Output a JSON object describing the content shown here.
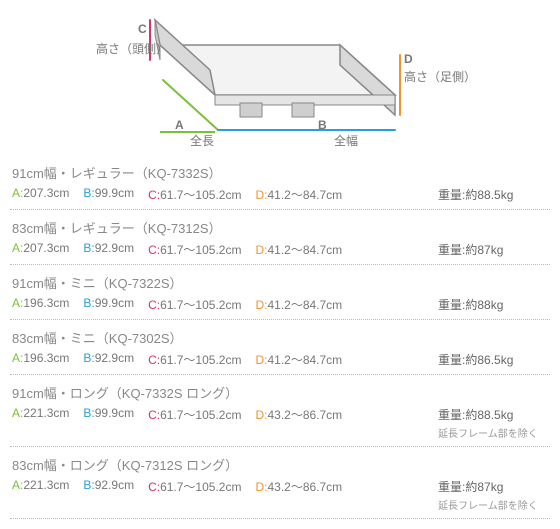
{
  "diagram": {
    "labels": {
      "A_letter": "A",
      "A_text": "全長",
      "B_letter": "B",
      "B_text": "全幅",
      "C_letter": "C",
      "C_text": "高さ（頭側）",
      "D_letter": "D",
      "D_text": "高さ（足側）"
    },
    "colors": {
      "A": "#7bbf3a",
      "B": "#2a9ed6",
      "C": "#d6336c",
      "D": "#f0932b",
      "bed_outline": "#888888",
      "bed_fill": "#f3f3f3",
      "bed_panel_fill": "#d9d9d9"
    }
  },
  "common_labels": {
    "A": "A:",
    "B": "B:",
    "C": "C:",
    "D": "D:",
    "weight_label": "重量:",
    "note_excl_ext": "延長フレーム部を除く"
  },
  "models": [
    {
      "title": "91cm幅・レギュラー（KQ-7332S）",
      "A": "207.3cm",
      "B": "99.9cm",
      "C": "61.7〜105.2cm",
      "D": "41.2〜84.7cm",
      "weight": "約88.5kg",
      "note": ""
    },
    {
      "title": "83cm幅・レギュラー（KQ-7312S）",
      "A": "207.3cm",
      "B": "92.9cm",
      "C": "61.7〜105.2cm",
      "D": "41.2〜84.7cm",
      "weight": "約87kg",
      "note": ""
    },
    {
      "title": "91cm幅・ミニ（KQ-7322S）",
      "A": "196.3cm",
      "B": "99.9cm",
      "C": "61.7〜105.2cm",
      "D": "41.2〜84.7cm",
      "weight": "約88kg",
      "note": ""
    },
    {
      "title": "83cm幅・ミニ（KQ-7302S）",
      "A": "196.3cm",
      "B": "92.9cm",
      "C": "61.7〜105.2cm",
      "D": "41.2〜84.7cm",
      "weight": "約86.5kg",
      "note": ""
    },
    {
      "title": "91cm幅・ロング（KQ-7332S ロング）",
      "A": "221.3cm",
      "B": "99.9cm",
      "C": "61.7〜105.2cm",
      "D": "43.2〜86.7cm",
      "weight": "約88.5kg",
      "note": "延長フレーム部を除く"
    },
    {
      "title": "83cm幅・ロング（KQ-7312S ロング）",
      "A": "221.3cm",
      "B": "92.9cm",
      "C": "61.7〜105.2cm",
      "D": "43.2〜86.7cm",
      "weight": "約87kg",
      "note": "延長フレーム部を除く"
    }
  ]
}
